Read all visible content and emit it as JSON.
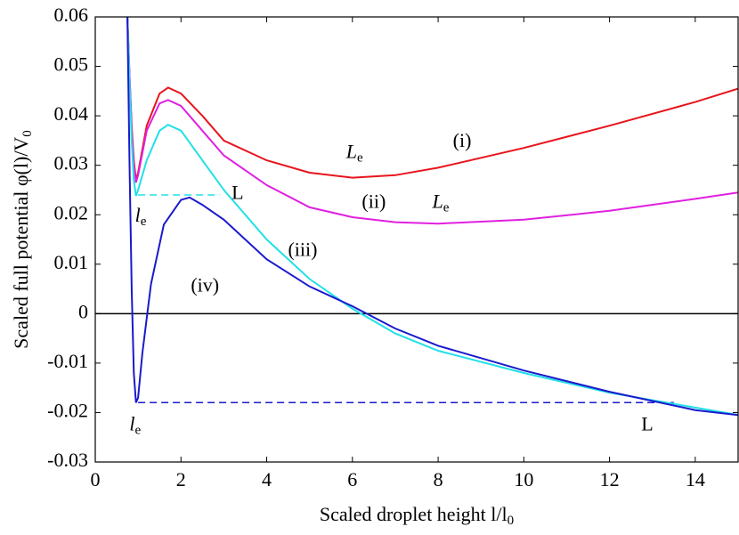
{
  "chart_data": {
    "type": "line",
    "xlabel": "Scaled droplet height  l/l",
    "xlabel_sub": "0",
    "ylabel": "Scaled full potential  φ(l)/V",
    "ylabel_sub": "0",
    "xlim": [
      0,
      15
    ],
    "xticks": [
      0,
      2,
      4,
      6,
      8,
      10,
      12,
      14
    ],
    "ylim": [
      -0.03,
      0.06
    ],
    "yticks": [
      -0.03,
      -0.02,
      -0.01,
      0,
      0.01,
      0.02,
      0.03,
      0.04,
      0.05,
      0.06
    ],
    "zero_line": true,
    "series": [
      {
        "color": "#e8141c",
        "x": [
          0.75,
          0.8,
          0.85,
          0.9,
          0.95,
          1.0,
          1.2,
          1.5,
          1.7,
          2.0,
          2.5,
          3,
          4,
          5,
          6,
          7,
          8,
          10,
          12,
          14,
          15
        ],
        "values": [
          0.06,
          0.048,
          0.038,
          0.031,
          0.027,
          0.0285,
          0.038,
          0.0445,
          0.0457,
          0.0445,
          0.04,
          0.035,
          0.031,
          0.0285,
          0.0275,
          0.028,
          0.0295,
          0.0335,
          0.038,
          0.0428,
          0.0455
        ]
      },
      {
        "color": "#e020e0",
        "x": [
          0.75,
          0.8,
          0.85,
          0.9,
          0.95,
          1.0,
          1.2,
          1.5,
          1.7,
          2.0,
          2.5,
          3,
          4,
          5,
          6,
          7,
          8,
          10,
          12,
          14,
          15
        ],
        "values": [
          0.06,
          0.048,
          0.037,
          0.03,
          0.0265,
          0.028,
          0.037,
          0.0425,
          0.0432,
          0.042,
          0.037,
          0.032,
          0.026,
          0.0215,
          0.0195,
          0.0185,
          0.0182,
          0.019,
          0.0208,
          0.0232,
          0.0245
        ]
      },
      {
        "color": "#20e0e8",
        "x": [
          0.75,
          0.8,
          0.85,
          0.9,
          0.95,
          1.0,
          1.2,
          1.5,
          1.7,
          2.0,
          2.5,
          3,
          4,
          5,
          6,
          7,
          8,
          10,
          12,
          14,
          15
        ],
        "values": [
          0.06,
          0.047,
          0.035,
          0.027,
          0.0238,
          0.025,
          0.031,
          0.037,
          0.0382,
          0.037,
          0.031,
          0.025,
          0.015,
          0.007,
          0.001,
          -0.004,
          -0.0075,
          -0.012,
          -0.016,
          -0.019,
          -0.0205
        ]
      },
      {
        "color": "#1a1acc",
        "x": [
          0.75,
          0.8,
          0.85,
          0.9,
          0.95,
          1.0,
          1.1,
          1.3,
          1.6,
          2.0,
          2.2,
          2.5,
          3,
          4,
          5,
          6,
          7,
          8,
          10,
          12,
          14,
          15
        ],
        "values": [
          0.06,
          0.03,
          0.005,
          -0.012,
          -0.018,
          -0.017,
          -0.008,
          0.006,
          0.018,
          0.023,
          0.0235,
          0.022,
          0.019,
          0.011,
          0.0055,
          0.0015,
          -0.003,
          -0.0065,
          -0.0115,
          -0.0158,
          -0.0195,
          -0.0205
        ]
      }
    ],
    "dashed_lines": [
      {
        "color": "#20e0e8",
        "x": [
          1.0,
          2.9
        ],
        "values": [
          0.024,
          0.024
        ]
      },
      {
        "color": "#1a1acc",
        "x": [
          1.0,
          13.5
        ],
        "values": [
          -0.018,
          -0.018
        ]
      }
    ],
    "annotations": [
      {
        "text": "(i)",
        "x": 8.56,
        "y": 0.0346
      },
      {
        "text": "L",
        "sub": "e",
        "x": 6.05,
        "y": 0.0324
      },
      {
        "text": "(ii)",
        "x": 6.5,
        "y": 0.0223
      },
      {
        "text": "L",
        "sub": "e",
        "x": 8.06,
        "y": 0.0223
      },
      {
        "text": "L",
        "x": 3.32,
        "y": 0.0241
      },
      {
        "text": "l",
        "sub": "e",
        "x": 1.06,
        "y": 0.0195
      },
      {
        "text": "(iii)",
        "x": 4.84,
        "y": 0.0126
      },
      {
        "text": "(iv)",
        "x": 2.56,
        "y": 0.0054
      },
      {
        "text": "l",
        "sub": "e",
        "x": 0.93,
        "y": -0.0227
      },
      {
        "text": "L",
        "x": 12.88,
        "y": -0.0227
      }
    ]
  }
}
